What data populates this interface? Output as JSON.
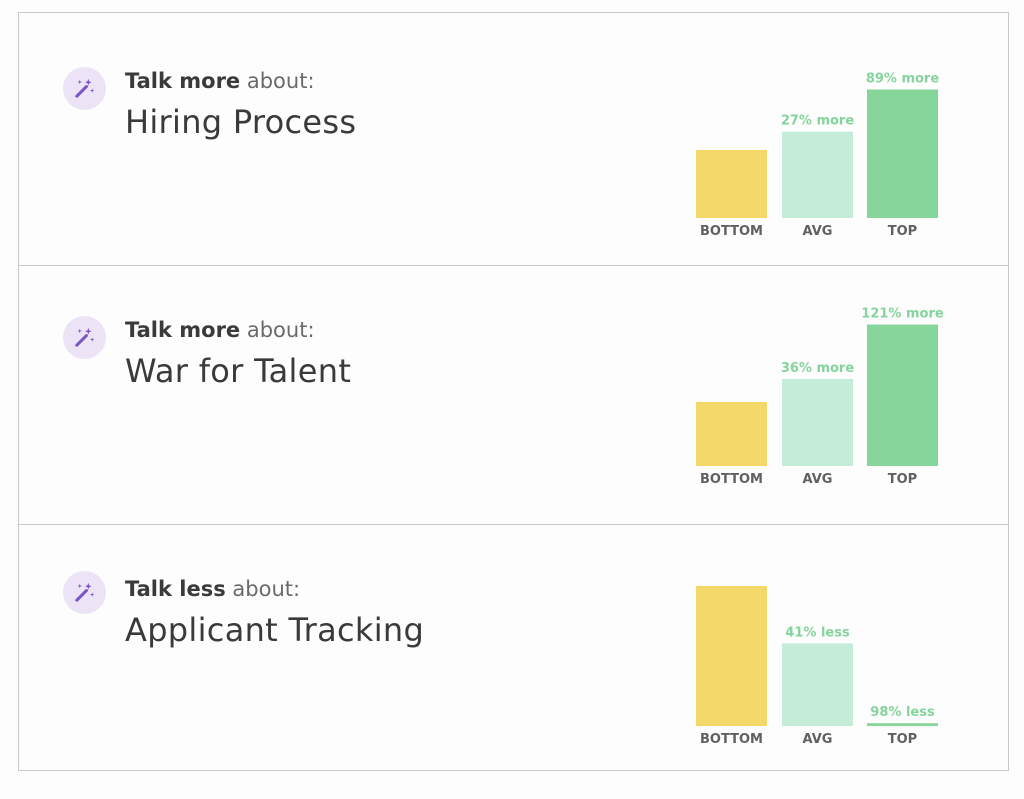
{
  "colors": {
    "bottom": "#f2d96a",
    "avg": "#c4ecd9",
    "top": "#86d69b",
    "icon_bg": "#ece4f6",
    "icon_fg": "#7b55c4",
    "value_text": "#85d49c"
  },
  "icon_name": "magic-wand-icon",
  "cards": [
    {
      "strong": "Talk more",
      "rest": " about:",
      "topic": "Hiring Process"
    },
    {
      "strong": "Talk more",
      "rest": " about:",
      "topic": "War for Talent"
    },
    {
      "strong": "Talk less",
      "rest": " about:",
      "topic": "Applicant Tracking"
    }
  ],
  "chart_data": [
    {
      "type": "bar",
      "categories": [
        "BOTTOM",
        "AVG",
        "TOP"
      ],
      "values": [
        1.0,
        1.27,
        1.89
      ],
      "data_labels": [
        "",
        "27% more",
        "89% more"
      ]
    },
    {
      "type": "bar",
      "categories": [
        "BOTTOM",
        "AVG",
        "TOP"
      ],
      "values": [
        1.0,
        1.36,
        2.21
      ],
      "data_labels": [
        "",
        "36% more",
        "121% more"
      ]
    },
    {
      "type": "bar",
      "categories": [
        "BOTTOM",
        "AVG",
        "TOP"
      ],
      "values": [
        1.0,
        0.59,
        0.02
      ],
      "data_labels": [
        "",
        "41% less",
        "98% less"
      ]
    }
  ]
}
